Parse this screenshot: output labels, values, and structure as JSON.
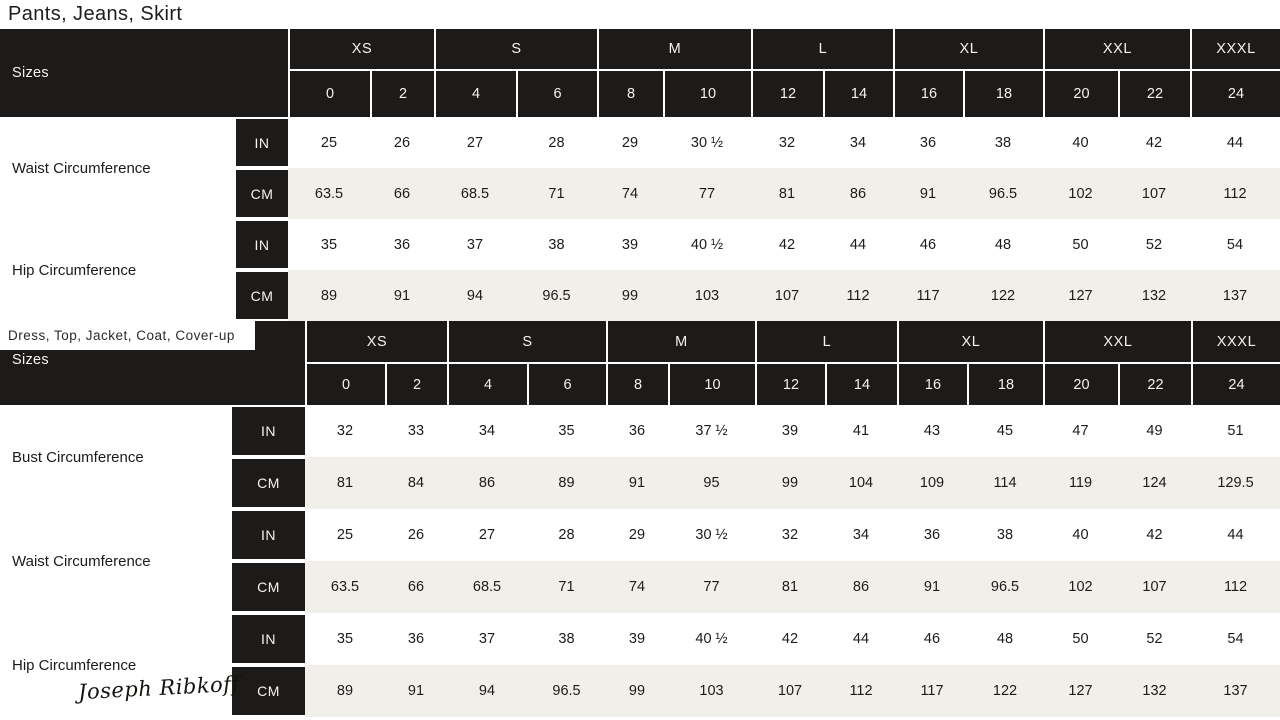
{
  "brand": {
    "signature": "Joseph Ribkoff"
  },
  "colors": {
    "header_bg": "#1d1b1a",
    "header_text": "#f4f3ee",
    "alt_row_bg": "#f0efe9",
    "page_bg": "#ffffff",
    "text": "#1d1b1a"
  },
  "tables": [
    {
      "title": "Pants, Jeans, Skirt",
      "sizes_label": "Sizes",
      "size_groups": [
        {
          "label": "XS",
          "span": 2
        },
        {
          "label": "S",
          "span": 2
        },
        {
          "label": "M",
          "span": 2
        },
        {
          "label": "L",
          "span": 2
        },
        {
          "label": "XL",
          "span": 2
        },
        {
          "label": "XXL",
          "span": 2
        },
        {
          "label": "XXXL",
          "span": 1
        }
      ],
      "size_numbers": [
        "0",
        "2",
        "4",
        "6",
        "8",
        "10",
        "12",
        "14",
        "16",
        "18",
        "20",
        "22",
        "24"
      ],
      "rows": [
        {
          "label": "Waist Circumference",
          "units": [
            {
              "unit": "IN",
              "values": [
                "25",
                "26",
                "27",
                "28",
                "29",
                "30 ½",
                "32",
                "34",
                "36",
                "38",
                "40",
                "42",
                "44"
              ]
            },
            {
              "unit": "CM",
              "values": [
                "63.5",
                "66",
                "68.5",
                "71",
                "74",
                "77",
                "81",
                "86",
                "91",
                "96.5",
                "102",
                "107",
                "112"
              ]
            }
          ]
        },
        {
          "label": "Hip Circumference",
          "units": [
            {
              "unit": "IN",
              "values": [
                "35",
                "36",
                "37",
                "38",
                "39",
                "40 ½",
                "42",
                "44",
                "46",
                "48",
                "50",
                "52",
                "54"
              ]
            },
            {
              "unit": "CM",
              "values": [
                "89",
                "91",
                "94",
                "96.5",
                "99",
                "103",
                "107",
                "112",
                "117",
                "122",
                "127",
                "132",
                "137"
              ]
            }
          ]
        }
      ]
    },
    {
      "title": "Dress, Top, Jacket, Coat, Cover-up",
      "sizes_label": "Sizes",
      "size_groups": [
        {
          "label": "XS",
          "span": 2
        },
        {
          "label": "S",
          "span": 2
        },
        {
          "label": "M",
          "span": 2
        },
        {
          "label": "L",
          "span": 2
        },
        {
          "label": "XL",
          "span": 2
        },
        {
          "label": "XXL",
          "span": 2
        },
        {
          "label": "XXXL",
          "span": 1
        }
      ],
      "size_numbers": [
        "0",
        "2",
        "4",
        "6",
        "8",
        "10",
        "12",
        "14",
        "16",
        "18",
        "20",
        "22",
        "24"
      ],
      "rows": [
        {
          "label": "Bust Circumference",
          "units": [
            {
              "unit": "IN",
              "values": [
                "32",
                "33",
                "34",
                "35",
                "36",
                "37 ½",
                "39",
                "41",
                "43",
                "45",
                "47",
                "49",
                "51"
              ]
            },
            {
              "unit": "CM",
              "values": [
                "81",
                "84",
                "86",
                "89",
                "91",
                "95",
                "99",
                "104",
                "109",
                "114",
                "119",
                "124",
                "129.5"
              ]
            }
          ]
        },
        {
          "label": "Waist Circumference",
          "units": [
            {
              "unit": "IN",
              "values": [
                "25",
                "26",
                "27",
                "28",
                "29",
                "30 ½",
                "32",
                "34",
                "36",
                "38",
                "40",
                "42",
                "44"
              ]
            },
            {
              "unit": "CM",
              "values": [
                "63.5",
                "66",
                "68.5",
                "71",
                "74",
                "77",
                "81",
                "86",
                "91",
                "96.5",
                "102",
                "107",
                "112"
              ]
            }
          ]
        },
        {
          "label": "Hip Circumference",
          "units": [
            {
              "unit": "IN",
              "values": [
                "35",
                "36",
                "37",
                "38",
                "39",
                "40 ½",
                "42",
                "44",
                "46",
                "48",
                "50",
                "52",
                "54"
              ]
            },
            {
              "unit": "CM",
              "values": [
                "89",
                "91",
                "94",
                "96.5",
                "99",
                "103",
                "107",
                "112",
                "117",
                "122",
                "127",
                "132",
                "137"
              ]
            }
          ]
        }
      ]
    }
  ]
}
